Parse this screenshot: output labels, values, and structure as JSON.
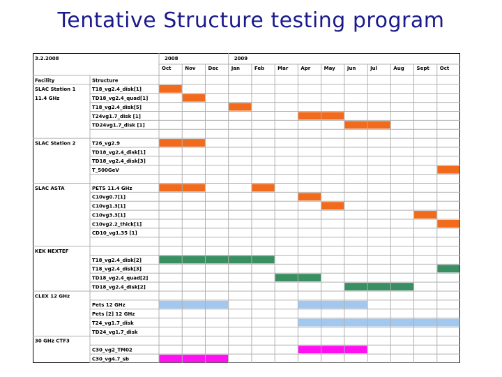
{
  "title": "Tentative Structure testing program",
  "header": {
    "date": "3.2.2008",
    "year_2008": "2008",
    "year_2009": "2009",
    "facility_label": "Facility",
    "structure_label": "Structure",
    "months": [
      "Oct",
      "Nov",
      "Dec",
      "Jan",
      "Feb",
      "Mar",
      "Apr",
      "May",
      "Jun",
      "Jul",
      "Aug",
      "Sept",
      "Oct"
    ]
  },
  "colors": {
    "orange": "#f26a1b",
    "green": "#3a8f62",
    "blue": "#a3c8f0",
    "magenta": "#ff10f0",
    "grid": "#b0b0b0"
  },
  "rows": [
    {
      "facility": "SLAC Station 1",
      "structure": "T18_vg2.4_disk[1]",
      "bars": [
        {
          "color": "orange",
          "start": 0,
          "end": 1
        }
      ]
    },
    {
      "facility": "11.4 GHz",
      "structure": "TD18_vg2.4_quad[1]",
      "bars": [
        {
          "color": "orange",
          "start": 1,
          "end": 2
        }
      ]
    },
    {
      "facility": "",
      "structure": "T18_vg2.4_disk[5]",
      "bars": [
        {
          "color": "orange",
          "start": 3,
          "end": 4
        }
      ]
    },
    {
      "facility": "",
      "structure": "T24vg1.7_disk [1]",
      "bars": [
        {
          "color": "orange",
          "start": 6,
          "end": 8
        }
      ]
    },
    {
      "facility": "",
      "structure": "TD24vg1.7_disk [1]",
      "bars": [
        {
          "color": "orange",
          "start": 8,
          "end": 10
        }
      ]
    },
    {
      "facility": "",
      "structure": "",
      "bars": []
    },
    {
      "facility": "SLAC Station 2",
      "structure": "T26_vg2.9",
      "bars": [
        {
          "color": "orange",
          "start": 0,
          "end": 2
        }
      ]
    },
    {
      "facility": "",
      "structure": "TD18_vg2.4_disk[1]",
      "bars": []
    },
    {
      "facility": "",
      "structure": "TD18_vg2.4_disk[3]",
      "bars": []
    },
    {
      "facility": "",
      "structure": "T_500GeV",
      "bars": [
        {
          "color": "orange",
          "start": 12,
          "end": 13
        }
      ]
    },
    {
      "facility": "",
      "structure": "",
      "bars": []
    },
    {
      "facility": "SLAC ASTA",
      "structure": "PETS 11.4 GHz",
      "bars": [
        {
          "color": "orange",
          "start": 0,
          "end": 2
        },
        {
          "color": "orange",
          "start": 4,
          "end": 5
        }
      ]
    },
    {
      "facility": "",
      "structure": "C10vg0.7[1]",
      "bars": [
        {
          "color": "orange",
          "start": 6,
          "end": 7
        }
      ]
    },
    {
      "facility": "",
      "structure": "C10vg1.3[1]",
      "bars": [
        {
          "color": "orange",
          "start": 7,
          "end": 8
        }
      ]
    },
    {
      "facility": "",
      "structure": "C10vg3.3[1]",
      "bars": [
        {
          "color": "orange",
          "start": 11,
          "end": 12
        }
      ]
    },
    {
      "facility": "",
      "structure": "C10vg2.2_thick[1]",
      "bars": [
        {
          "color": "orange",
          "start": 12,
          "end": 13
        }
      ]
    },
    {
      "facility": "",
      "structure": "CD10_vg1.35 [1]",
      "bars": []
    },
    {
      "facility": "",
      "structure": "",
      "bars": []
    },
    {
      "facility": "KEK NEXTEF",
      "structure": "",
      "bars": []
    },
    {
      "facility": "",
      "structure": "T18_vg2.4_disk[2]",
      "bars": [
        {
          "color": "green",
          "start": 0,
          "end": 5
        }
      ]
    },
    {
      "facility": "",
      "structure": "T18_vg2.4_disk[3]",
      "bars": [
        {
          "color": "green",
          "start": 12,
          "end": 13
        }
      ]
    },
    {
      "facility": "",
      "structure": "TD18_vg2.4_quad[2]",
      "bars": [
        {
          "color": "green",
          "start": 5,
          "end": 7
        }
      ]
    },
    {
      "facility": "",
      "structure": "TD18_vg2.4_disk[2]",
      "bars": [
        {
          "color": "green",
          "start": 8,
          "end": 11
        }
      ]
    },
    {
      "facility": "CLEX 12 GHz",
      "structure": "",
      "bars": []
    },
    {
      "facility": "",
      "structure": "Pets 12 GHz",
      "bars": [
        {
          "color": "blue",
          "start": 0,
          "end": 3
        },
        {
          "color": "blue",
          "start": 6,
          "end": 9
        }
      ]
    },
    {
      "facility": "",
      "structure": "Pets [2] 12 GHz",
      "bars": []
    },
    {
      "facility": "",
      "structure": "T24_vg1.7_disk",
      "bars": [
        {
          "color": "blue",
          "start": 6,
          "end": 13
        }
      ]
    },
    {
      "facility": "",
      "structure": "TD24_vg1.7_disk",
      "bars": []
    },
    {
      "facility": "30 GHz CTF3",
      "structure": "",
      "bars": []
    },
    {
      "facility": "",
      "structure": "C30_vg2_TM02",
      "bars": [
        {
          "color": "magenta",
          "start": 6,
          "end": 9
        }
      ]
    },
    {
      "facility": "",
      "structure": "C30_vg4.7_sb",
      "bars": [
        {
          "color": "magenta",
          "start": 0,
          "end": 3
        }
      ]
    }
  ]
}
